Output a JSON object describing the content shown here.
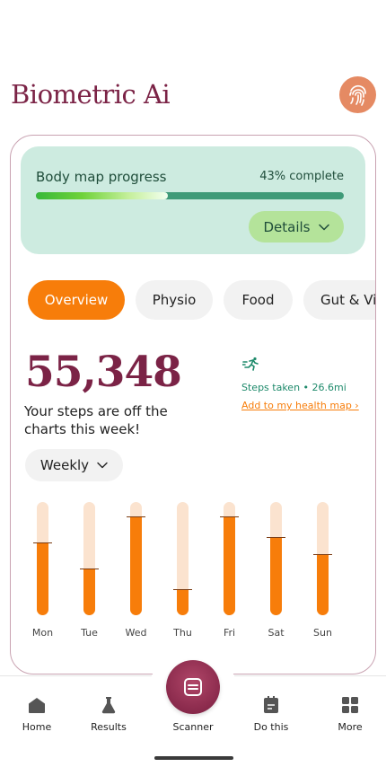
{
  "app": {
    "brand": "Biometric Ai"
  },
  "colors": {
    "brand": "#7b2346",
    "accent": "#f77d0a",
    "panel": "#cdebe0",
    "success": "#1e8a6b"
  },
  "header": {
    "profile_icon": "fingerprint-icon"
  },
  "progress": {
    "title": "Body map progress",
    "percent_label": "43% complete",
    "percent": 0.43,
    "details_label": "Details"
  },
  "tabs": [
    {
      "label": "Overview",
      "active": true
    },
    {
      "label": "Physio",
      "active": false
    },
    {
      "label": "Food",
      "active": false
    },
    {
      "label": "Gut & Vit",
      "active": false
    }
  ],
  "steps": {
    "value": "55,348",
    "message": "Your steps are off the charts this week!",
    "meta": "Steps taken • 26.6mi",
    "link": "Add to my health map ›",
    "icon": "runner-icon"
  },
  "period": {
    "selected": "Weekly"
  },
  "chart_data": {
    "type": "bar",
    "categories": [
      "Mon",
      "Tue",
      "Wed",
      "Thu",
      "Fri",
      "Sat",
      "Sun"
    ],
    "series": [
      {
        "values": [
          0.64,
          0.41,
          0.87,
          0.23,
          0.87,
          0.69,
          0.54
        ]
      }
    ],
    "ylim": [
      0,
      1
    ]
  },
  "nav": {
    "items": [
      {
        "label": "Home",
        "icon": "home-icon"
      },
      {
        "label": "Results",
        "icon": "flask-icon"
      },
      {
        "label": "Scanner",
        "icon": "scanner-icon"
      },
      {
        "label": "Do this",
        "icon": "clipboard-icon"
      },
      {
        "label": "More",
        "icon": "grid-icon"
      }
    ]
  }
}
